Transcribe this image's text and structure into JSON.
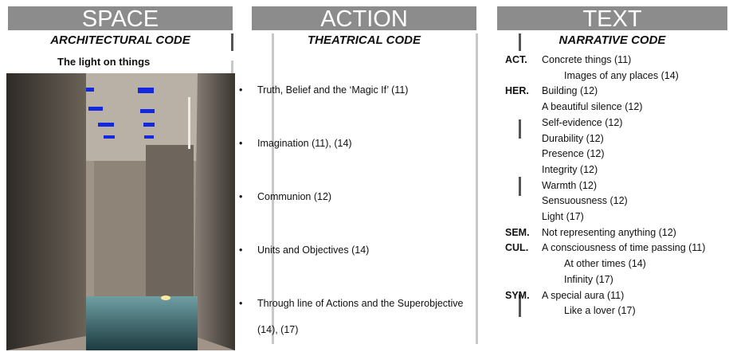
{
  "columns": [
    {
      "header": "SPACE",
      "subheader": "ARCHITECTURAL CODE",
      "caption": "The light on things"
    },
    {
      "header": "ACTION",
      "subheader": "THEATRICAL CODE",
      "items": [
        "Truth, Belief and the ‘Magic If’ (11)",
        "Imagination (11), (14)",
        "Communion (12)",
        "Units and Objectives (14)",
        "Through line of Actions and the Superobjective (14), (17)"
      ]
    },
    {
      "header": "TEXT",
      "subheader": "NARRATIVE CODE",
      "groups": [
        {
          "label": "ACT.",
          "items": [
            "Concrete things (11)",
            "Images of any places (14)"
          ]
        },
        {
          "label": "HER.",
          "items": [
            "Building (12)",
            "A beautiful silence (12)",
            "Self-evidence (12)",
            "Durability (12)",
            "Presence (12)",
            "Integrity (12)",
            "Warmth (12)",
            "Sensuousness (12)",
            "Light (17)"
          ]
        },
        {
          "label": "SEM.",
          "items": [
            "Not representing anything (12)"
          ]
        },
        {
          "label": "CUL.",
          "items": [
            "A consciousness of time passing (11)",
            "At other times (14)",
            "Infinity (17)"
          ]
        },
        {
          "label": "SYM.",
          "items": [
            "A special aura (11)",
            "Like a lover (17)"
          ]
        }
      ]
    }
  ]
}
